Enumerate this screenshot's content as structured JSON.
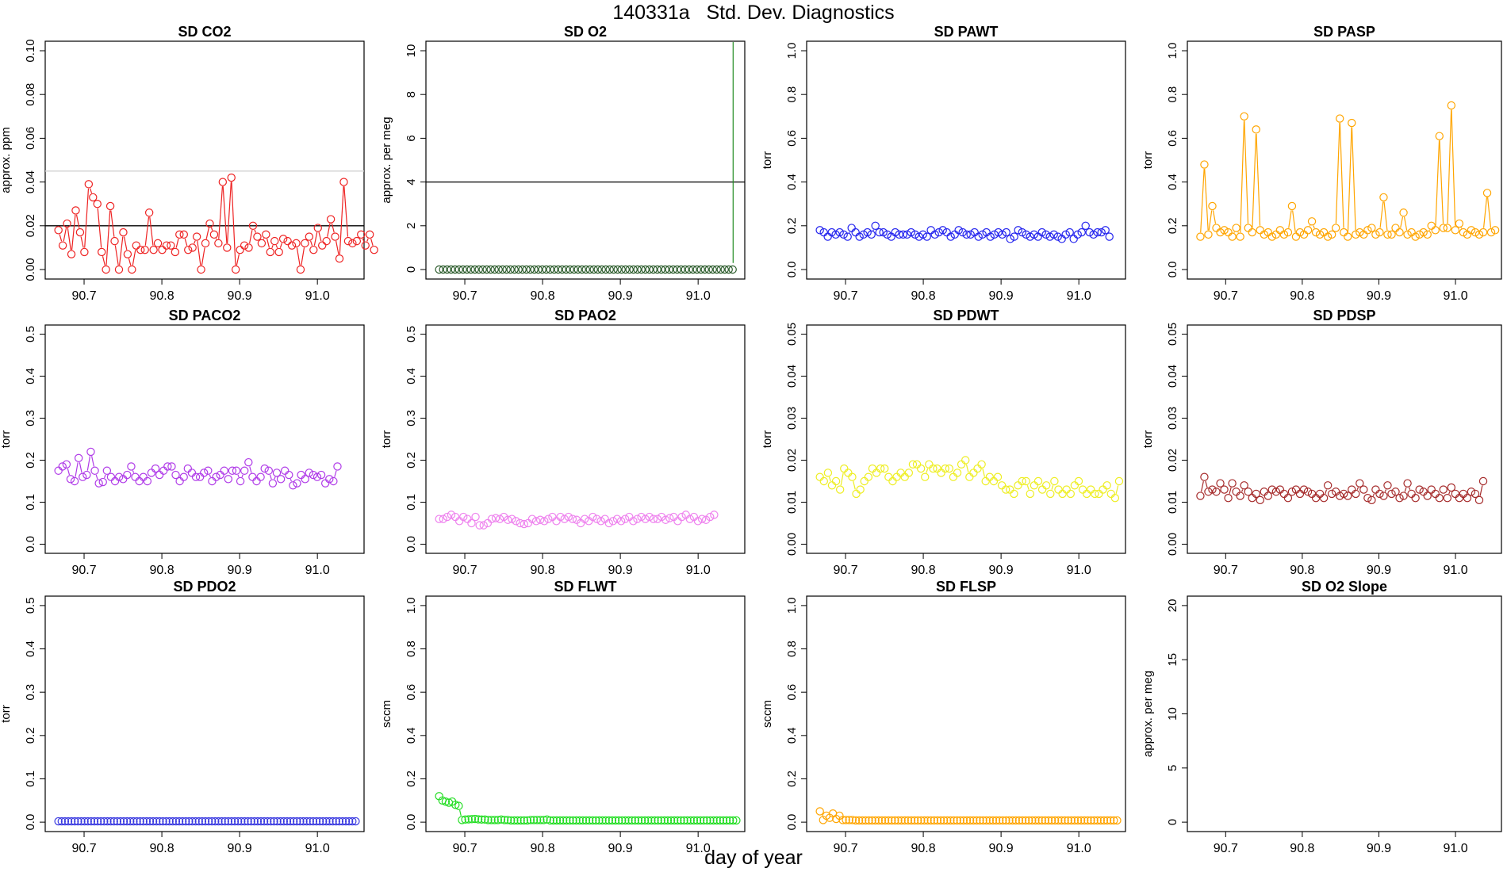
{
  "figure": {
    "title": "140331a   Std. Dev. Diagnostics",
    "xlabel": "day of year"
  },
  "chart_data": [
    {
      "type": "scatter",
      "title": "SD CO2",
      "ylabel": "approx. ppm",
      "ylim": [
        0,
        0.1
      ],
      "yticks": [
        "0.00",
        "0.02",
        "0.04",
        "0.06",
        "0.08",
        "0.10"
      ],
      "xlim": [
        90.65,
        91.06
      ],
      "xticks": [
        "90.7",
        "90.8",
        "90.9",
        "91.0"
      ],
      "color": "#ee2222",
      "connect": true,
      "grid": false,
      "hlines": [
        {
          "y": 0.045,
          "color": "#d3d3d3"
        },
        {
          "y": 0.02,
          "color": "#000000"
        }
      ],
      "x_start": 90.667,
      "x_step": 0.00556,
      "values": [
        0.018,
        0.011,
        0.021,
        0.007,
        0.027,
        0.017,
        0.008,
        0.039,
        0.033,
        0.03,
        0.008,
        0,
        0.029,
        0.013,
        0,
        0.017,
        0.007,
        0,
        0.011,
        0.009,
        0.009,
        0.026,
        0.009,
        0.012,
        0.009,
        0.011,
        0.011,
        0.008,
        0.016,
        0.016,
        0.009,
        0.01,
        0.015,
        0,
        0.012,
        0.021,
        0.016,
        0.012,
        0.04,
        0.01,
        0.042,
        0,
        0.009,
        0.011,
        0.01,
        0.02,
        0.015,
        0.012,
        0.016,
        0.008,
        0.013,
        0.008,
        0.014,
        0.013,
        0.011,
        0.012,
        0,
        0.012,
        0.015,
        0.009,
        0.019,
        0.011,
        0.013,
        0.023,
        0.015,
        0.005,
        0.04,
        0.013,
        0.012,
        0.013,
        0.016,
        0.011,
        0.016,
        0.009
      ]
    },
    {
      "type": "scatter",
      "title": "SD O2",
      "ylabel": "approx. per meg",
      "ylim": [
        0,
        10
      ],
      "yticks": [
        "0",
        "2",
        "4",
        "6",
        "8",
        "10"
      ],
      "xlim": [
        90.65,
        91.06
      ],
      "xticks": [
        "90.7",
        "90.8",
        "90.9",
        "91.0"
      ],
      "color": "#2a5a2a",
      "connect": false,
      "grid": false,
      "hlines": [
        {
          "y": 4,
          "color": "#000000"
        }
      ],
      "vline": {
        "x": 91.045,
        "y_from": 0.3,
        "y_to": 10.4,
        "color": "#228b22"
      },
      "x_start": 90.667,
      "x_step": 0.0051,
      "values_constant": 0,
      "count": 75
    },
    {
      "type": "scatter",
      "title": "SD PAWT",
      "ylabel": "torr",
      "ylim": [
        0,
        1
      ],
      "yticks": [
        "0.0",
        "0.2",
        "0.4",
        "0.6",
        "0.8",
        "1.0"
      ],
      "xlim": [
        90.65,
        91.06
      ],
      "xticks": [
        "90.7",
        "90.8",
        "90.9",
        "91.0"
      ],
      "color": "#2222ee",
      "connect": true,
      "grid": false,
      "x_start": 90.667,
      "x_step": 0.0051,
      "values": [
        0.18,
        0.17,
        0.15,
        0.17,
        0.16,
        0.17,
        0.16,
        0.15,
        0.19,
        0.17,
        0.15,
        0.16,
        0.17,
        0.16,
        0.2,
        0.17,
        0.17,
        0.16,
        0.15,
        0.17,
        0.16,
        0.16,
        0.16,
        0.17,
        0.16,
        0.15,
        0.16,
        0.15,
        0.18,
        0.16,
        0.17,
        0.18,
        0.17,
        0.15,
        0.16,
        0.18,
        0.17,
        0.16,
        0.16,
        0.17,
        0.15,
        0.16,
        0.17,
        0.15,
        0.16,
        0.17,
        0.16,
        0.17,
        0.14,
        0.15,
        0.18,
        0.17,
        0.16,
        0.15,
        0.16,
        0.15,
        0.17,
        0.16,
        0.15,
        0.16,
        0.15,
        0.14,
        0.16,
        0.17,
        0.14,
        0.16,
        0.17,
        0.2,
        0.17,
        0.16,
        0.17,
        0.17,
        0.18,
        0.15
      ]
    },
    {
      "type": "scatter",
      "title": "SD PASP",
      "ylabel": "torr",
      "ylim": [
        0,
        1
      ],
      "yticks": [
        "0.0",
        "0.2",
        "0.4",
        "0.6",
        "0.8",
        "1.0"
      ],
      "xlim": [
        90.65,
        91.06
      ],
      "xticks": [
        "90.7",
        "90.8",
        "90.9",
        "91.0"
      ],
      "color": "#ffa500",
      "connect": true,
      "grid": false,
      "x_start": 90.667,
      "x_step": 0.0052,
      "values": [
        0.15,
        0.48,
        0.16,
        0.29,
        0.19,
        0.17,
        0.18,
        0.17,
        0.15,
        0.19,
        0.15,
        0.7,
        0.19,
        0.17,
        0.64,
        0.18,
        0.16,
        0.17,
        0.15,
        0.16,
        0.18,
        0.16,
        0.17,
        0.29,
        0.15,
        0.17,
        0.16,
        0.18,
        0.22,
        0.17,
        0.16,
        0.17,
        0.15,
        0.16,
        0.19,
        0.69,
        0.17,
        0.15,
        0.67,
        0.16,
        0.17,
        0.16,
        0.18,
        0.19,
        0.16,
        0.17,
        0.33,
        0.16,
        0.16,
        0.19,
        0.17,
        0.26,
        0.16,
        0.17,
        0.15,
        0.16,
        0.17,
        0.16,
        0.2,
        0.18,
        0.61,
        0.19,
        0.19,
        0.75,
        0.18,
        0.21,
        0.17,
        0.16,
        0.18,
        0.17,
        0.16,
        0.17,
        0.35,
        0.17,
        0.18
      ]
    },
    {
      "type": "scatter",
      "title": "SD PACO2",
      "ylabel": "torr",
      "ylim": [
        0,
        0.5
      ],
      "yticks": [
        "0.0",
        "0.1",
        "0.2",
        "0.3",
        "0.4",
        "0.5"
      ],
      "xlim": [
        90.65,
        91.06
      ],
      "xticks": [
        "90.7",
        "90.8",
        "90.9",
        "91.0"
      ],
      "color": "#b03be8",
      "connect": true,
      "grid": false,
      "x_start": 90.667,
      "x_step": 0.0052,
      "values": [
        0.175,
        0.185,
        0.19,
        0.155,
        0.15,
        0.205,
        0.16,
        0.165,
        0.22,
        0.175,
        0.145,
        0.148,
        0.175,
        0.16,
        0.15,
        0.16,
        0.155,
        0.165,
        0.185,
        0.16,
        0.15,
        0.16,
        0.15,
        0.17,
        0.18,
        0.165,
        0.175,
        0.185,
        0.185,
        0.165,
        0.15,
        0.16,
        0.18,
        0.17,
        0.16,
        0.16,
        0.17,
        0.175,
        0.15,
        0.16,
        0.165,
        0.175,
        0.155,
        0.175,
        0.175,
        0.15,
        0.175,
        0.195,
        0.16,
        0.15,
        0.16,
        0.18,
        0.175,
        0.145,
        0.17,
        0.155,
        0.175,
        0.165,
        0.14,
        0.145,
        0.165,
        0.155,
        0.17,
        0.165,
        0.16,
        0.165,
        0.145,
        0.155,
        0.15,
        0.185
      ]
    },
    {
      "type": "scatter",
      "title": "SD PAO2",
      "ylabel": "torr",
      "ylim": [
        0,
        0.5
      ],
      "yticks": [
        "0.0",
        "0.1",
        "0.2",
        "0.3",
        "0.4",
        "0.5"
      ],
      "xlim": [
        90.65,
        91.06
      ],
      "xticks": [
        "90.7",
        "90.8",
        "90.9",
        "91.0"
      ],
      "color": "#ee82ee",
      "connect": true,
      "grid": false,
      "x_start": 90.667,
      "x_step": 0.0052,
      "values": [
        0.06,
        0.06,
        0.065,
        0.07,
        0.065,
        0.055,
        0.065,
        0.06,
        0.05,
        0.065,
        0.045,
        0.045,
        0.05,
        0.06,
        0.062,
        0.06,
        0.065,
        0.058,
        0.06,
        0.055,
        0.05,
        0.048,
        0.05,
        0.06,
        0.055,
        0.058,
        0.055,
        0.06,
        0.065,
        0.055,
        0.065,
        0.06,
        0.065,
        0.06,
        0.058,
        0.05,
        0.06,
        0.055,
        0.065,
        0.06,
        0.055,
        0.06,
        0.05,
        0.055,
        0.06,
        0.055,
        0.06,
        0.065,
        0.055,
        0.06,
        0.065,
        0.06,
        0.065,
        0.06,
        0.06,
        0.065,
        0.058,
        0.062,
        0.065,
        0.055,
        0.065,
        0.07,
        0.06,
        0.065,
        0.055,
        0.06,
        0.058,
        0.065,
        0.07
      ]
    },
    {
      "type": "scatter",
      "title": "SD PDWT",
      "ylabel": "torr",
      "ylim": [
        0,
        0.05
      ],
      "yticks": [
        "0.00",
        "0.01",
        "0.02",
        "0.03",
        "0.04",
        "0.05"
      ],
      "xlim": [
        90.65,
        91.06
      ],
      "xticks": [
        "90.7",
        "90.8",
        "90.9",
        "91.0"
      ],
      "color": "#eeee22",
      "connect": true,
      "grid": false,
      "x_start": 90.667,
      "x_step": 0.0052,
      "values": [
        0.016,
        0.015,
        0.017,
        0.014,
        0.015,
        0.013,
        0.018,
        0.017,
        0.016,
        0.012,
        0.013,
        0.015,
        0.016,
        0.018,
        0.017,
        0.018,
        0.018,
        0.016,
        0.015,
        0.016,
        0.017,
        0.016,
        0.017,
        0.019,
        0.019,
        0.018,
        0.016,
        0.019,
        0.018,
        0.018,
        0.017,
        0.018,
        0.018,
        0.016,
        0.017,
        0.019,
        0.02,
        0.016,
        0.017,
        0.018,
        0.019,
        0.015,
        0.016,
        0.015,
        0.016,
        0.014,
        0.013,
        0.013,
        0.012,
        0.014,
        0.015,
        0.015,
        0.012,
        0.014,
        0.015,
        0.013,
        0.014,
        0.012,
        0.015,
        0.013,
        0.012,
        0.013,
        0.012,
        0.014,
        0.015,
        0.013,
        0.012,
        0.013,
        0.012,
        0.012,
        0.013,
        0.014,
        0.012,
        0.011,
        0.015
      ]
    },
    {
      "type": "scatter",
      "title": "SD PDSP",
      "ylabel": "torr",
      "ylim": [
        0,
        0.05
      ],
      "yticks": [
        "0.00",
        "0.01",
        "0.02",
        "0.03",
        "0.04",
        "0.05"
      ],
      "xlim": [
        90.65,
        91.06
      ],
      "xticks": [
        "90.7",
        "90.8",
        "90.9",
        "91.0"
      ],
      "color": "#a52a2a",
      "connect": true,
      "grid": false,
      "x_start": 90.667,
      "x_step": 0.0052,
      "values": [
        0.0115,
        0.016,
        0.0125,
        0.013,
        0.0125,
        0.0145,
        0.013,
        0.011,
        0.0145,
        0.0125,
        0.0115,
        0.014,
        0.0125,
        0.011,
        0.012,
        0.0105,
        0.0125,
        0.0115,
        0.013,
        0.0125,
        0.013,
        0.012,
        0.011,
        0.0125,
        0.013,
        0.012,
        0.013,
        0.0125,
        0.012,
        0.011,
        0.012,
        0.011,
        0.014,
        0.012,
        0.0125,
        0.0115,
        0.012,
        0.0115,
        0.013,
        0.012,
        0.0145,
        0.013,
        0.011,
        0.0105,
        0.013,
        0.012,
        0.0115,
        0.014,
        0.012,
        0.0125,
        0.011,
        0.0115,
        0.0145,
        0.012,
        0.011,
        0.013,
        0.0125,
        0.0115,
        0.013,
        0.012,
        0.011,
        0.013,
        0.011,
        0.0135,
        0.012,
        0.011,
        0.012,
        0.011,
        0.0125,
        0.012,
        0.0105,
        0.015
      ]
    },
    {
      "type": "scatter",
      "title": "SD PDO2",
      "ylabel": "torr",
      "ylim": [
        0,
        0.5
      ],
      "yticks": [
        "0.0",
        "0.1",
        "0.2",
        "0.3",
        "0.4",
        "0.5"
      ],
      "xlim": [
        90.65,
        91.06
      ],
      "xticks": [
        "90.7",
        "90.8",
        "90.9",
        "91.0"
      ],
      "color": "#3a3ae0",
      "connect": false,
      "grid": false,
      "x_start": 90.667,
      "x_step": 0.0042,
      "values_constant": 0.002,
      "count": 92
    },
    {
      "type": "scatter",
      "title": "SD FLWT",
      "ylabel": "sccm",
      "ylim": [
        0,
        1
      ],
      "yticks": [
        "0.0",
        "0.2",
        "0.4",
        "0.6",
        "0.8",
        "1.0"
      ],
      "xlim": [
        90.65,
        91.06
      ],
      "xticks": [
        "90.7",
        "90.8",
        "90.9",
        "91.0"
      ],
      "color": "#22dd22",
      "connect": true,
      "grid": false,
      "x_start": 90.667,
      "x_step": 0.0042,
      "values": [
        0.12,
        0.1,
        0.095,
        0.09,
        0.095,
        0.08,
        0.075,
        0.01,
        0.012,
        0.013,
        0.014,
        0.015,
        0.013,
        0.012,
        0.012,
        0.01,
        0.01,
        0.01,
        0.01,
        0.012,
        0.01,
        0.01,
        0.008,
        0.008,
        0.008,
        0.008,
        0.008,
        0.008,
        0.01,
        0.01,
        0.01,
        0.01,
        0.01,
        0.012,
        0.008,
        0.008,
        0.008,
        0.008,
        0.008,
        0.008,
        0.008,
        0.008,
        0.008,
        0.008,
        0.008,
        0.008,
        0.008,
        0.008,
        0.008,
        0.008,
        0.008,
        0.008,
        0.008,
        0.008,
        0.008,
        0.008,
        0.008,
        0.008,
        0.008,
        0.008,
        0.008,
        0.008,
        0.008,
        0.008,
        0.008,
        0.008,
        0.008,
        0.008,
        0.008,
        0.008,
        0.008,
        0.008,
        0.008,
        0.008,
        0.008,
        0.008,
        0.008,
        0.008,
        0.008,
        0.008,
        0.008,
        0.008,
        0.008,
        0.008,
        0.008,
        0.008,
        0.008,
        0.008,
        0.008,
        0.008,
        0.008,
        0.008
      ]
    },
    {
      "type": "scatter",
      "title": "SD FLSP",
      "ylabel": "sccm",
      "ylim": [
        0,
        1
      ],
      "yticks": [
        "0.0",
        "0.2",
        "0.4",
        "0.6",
        "0.8",
        "1.0"
      ],
      "xlim": [
        90.65,
        91.06
      ],
      "xticks": [
        "90.7",
        "90.8",
        "90.9",
        "91.0"
      ],
      "color": "#ffa500",
      "connect": true,
      "grid": false,
      "x_start": 90.667,
      "x_step": 0.0042,
      "values": [
        0.05,
        0.01,
        0.03,
        0.02,
        0.04,
        0.015,
        0.03,
        0.01,
        0.01,
        0.01,
        0.01,
        0.008,
        0.008,
        0.008,
        0.008,
        0.008,
        0.008,
        0.008,
        0.008,
        0.008,
        0.008,
        0.008,
        0.008,
        0.008,
        0.008,
        0.008,
        0.008,
        0.008,
        0.008,
        0.008,
        0.008,
        0.008,
        0.008,
        0.008,
        0.008,
        0.008,
        0.008,
        0.008,
        0.008,
        0.008,
        0.008,
        0.008,
        0.008,
        0.008,
        0.008,
        0.008,
        0.008,
        0.008,
        0.008,
        0.008,
        0.008,
        0.008,
        0.008,
        0.008,
        0.008,
        0.008,
        0.008,
        0.008,
        0.008,
        0.008,
        0.008,
        0.008,
        0.008,
        0.008,
        0.008,
        0.008,
        0.008,
        0.008,
        0.008,
        0.008,
        0.008,
        0.008,
        0.008,
        0.008,
        0.008,
        0.008,
        0.008,
        0.008,
        0.008,
        0.008,
        0.008,
        0.008,
        0.008,
        0.008,
        0.008,
        0.008,
        0.008,
        0.008,
        0.008,
        0.008,
        0.008,
        0.008
      ]
    },
    {
      "type": "scatter",
      "title": "SD O2 Slope",
      "ylabel": "approx. per meg",
      "ylim": [
        0,
        20
      ],
      "yticks": [
        "0",
        "5",
        "10",
        "15",
        "20"
      ],
      "xlim": [
        90.65,
        91.06
      ],
      "xticks": [
        "90.7",
        "90.8",
        "90.9",
        "91.0"
      ],
      "color": "#000000",
      "connect": false,
      "grid": false,
      "values": []
    }
  ]
}
